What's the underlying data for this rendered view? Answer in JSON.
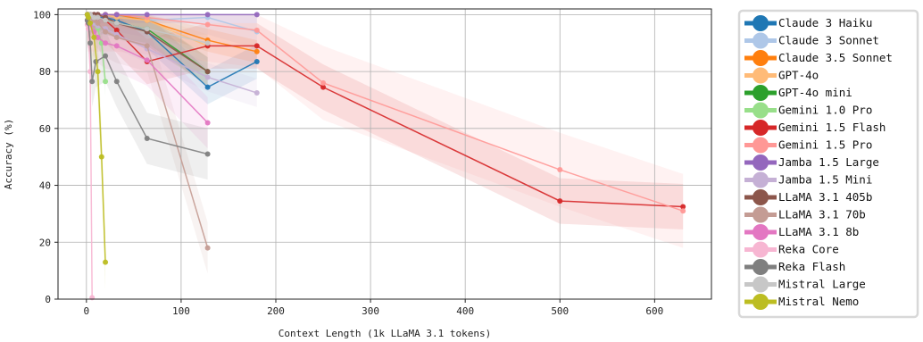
{
  "chart_data": {
    "type": "line",
    "title": "",
    "xlabel": "Context Length (1k LLaMA 3.1 tokens)",
    "ylabel": "Accuracy (%)",
    "xlim": [
      -30,
      660
    ],
    "ylim": [
      0,
      102
    ],
    "xticks": [
      0,
      100,
      200,
      300,
      400,
      500,
      600
    ],
    "yticks": [
      0,
      20,
      40,
      60,
      80,
      100
    ],
    "grid": true,
    "legend_position": "right",
    "series": [
      {
        "name": "Claude 3 Haiku",
        "color": "#1f77b4",
        "band": 6,
        "points": [
          [
            1,
            100
          ],
          [
            2,
            100
          ],
          [
            4,
            100
          ],
          [
            8,
            100
          ],
          [
            12,
            99
          ],
          [
            20,
            99
          ],
          [
            32,
            98
          ],
          [
            64,
            94
          ],
          [
            128,
            74.5
          ],
          [
            180,
            83.5
          ]
        ]
      },
      {
        "name": "Claude 3 Sonnet",
        "color": "#aec7e8",
        "band": 6,
        "points": [
          [
            1,
            100
          ],
          [
            2,
            100
          ],
          [
            4,
            100
          ],
          [
            8,
            100
          ],
          [
            12,
            100
          ],
          [
            20,
            100
          ],
          [
            32,
            100
          ],
          [
            64,
            98
          ],
          [
            128,
            99
          ],
          [
            180,
            94
          ]
        ]
      },
      {
        "name": "Claude 3.5 Sonnet",
        "color": "#ff7f0e",
        "band": 4,
        "points": [
          [
            1,
            100
          ],
          [
            2,
            100
          ],
          [
            4,
            100
          ],
          [
            8,
            100
          ],
          [
            12,
            100
          ],
          [
            20,
            100
          ],
          [
            32,
            100
          ],
          [
            64,
            98
          ],
          [
            128,
            91
          ],
          [
            180,
            87
          ]
        ]
      },
      {
        "name": "GPT-4o",
        "color": "#ffbb78",
        "band": 4,
        "points": [
          [
            1,
            100
          ],
          [
            2,
            100
          ],
          [
            4,
            100
          ],
          [
            8,
            100
          ],
          [
            12,
            100
          ],
          [
            20,
            100
          ],
          [
            32,
            99
          ],
          [
            64,
            98
          ],
          [
            128,
            89
          ]
        ]
      },
      {
        "name": "GPT-4o mini",
        "color": "#2ca02c",
        "band": 5,
        "points": [
          [
            1,
            100
          ],
          [
            2,
            100
          ],
          [
            4,
            100
          ],
          [
            8,
            100
          ],
          [
            12,
            99
          ],
          [
            20,
            98
          ],
          [
            32,
            97
          ],
          [
            64,
            95
          ],
          [
            128,
            80
          ]
        ]
      },
      {
        "name": "Gemini 1.0 Pro",
        "color": "#98df8a",
        "band": 5,
        "points": [
          [
            1,
            100
          ],
          [
            2,
            99
          ],
          [
            4,
            98
          ],
          [
            8,
            97
          ],
          [
            12,
            95
          ],
          [
            16,
            90
          ],
          [
            20,
            76.5
          ]
        ]
      },
      {
        "name": "Gemini 1.5 Flash",
        "color": "#d62728",
        "band": 8,
        "points": [
          [
            1,
            100
          ],
          [
            2,
            100
          ],
          [
            4,
            100
          ],
          [
            8,
            99
          ],
          [
            12,
            99
          ],
          [
            20,
            98
          ],
          [
            32,
            94.5
          ],
          [
            64,
            83.5
          ],
          [
            128,
            89
          ],
          [
            180,
            89
          ],
          [
            250,
            74.5
          ],
          [
            500,
            34.5
          ],
          [
            630,
            32.5
          ]
        ]
      },
      {
        "name": "Gemini 1.5 Pro",
        "color": "#ff9896",
        "band": 13,
        "points": [
          [
            1,
            100
          ],
          [
            2,
            100
          ],
          [
            4,
            100
          ],
          [
            8,
            100
          ],
          [
            12,
            100
          ],
          [
            20,
            100
          ],
          [
            32,
            100
          ],
          [
            64,
            99
          ],
          [
            128,
            96.5
          ],
          [
            180,
            94.5
          ],
          [
            250,
            76
          ],
          [
            500,
            45.5
          ],
          [
            630,
            31
          ]
        ]
      },
      {
        "name": "Jamba 1.5 Large",
        "color": "#9467bd",
        "band": 3,
        "points": [
          [
            1,
            100
          ],
          [
            2,
            100
          ],
          [
            4,
            100
          ],
          [
            8,
            100
          ],
          [
            12,
            100
          ],
          [
            20,
            100
          ],
          [
            32,
            100
          ],
          [
            64,
            100
          ],
          [
            128,
            100
          ],
          [
            180,
            100
          ]
        ]
      },
      {
        "name": "Jamba 1.5 Mini",
        "color": "#c5b0d5",
        "band": 5,
        "points": [
          [
            1,
            100
          ],
          [
            2,
            99
          ],
          [
            4,
            98
          ],
          [
            8,
            97
          ],
          [
            12,
            96
          ],
          [
            20,
            95
          ],
          [
            32,
            93
          ],
          [
            64,
            88
          ],
          [
            128,
            78
          ],
          [
            180,
            72.5
          ]
        ]
      },
      {
        "name": "LLaMA 3.1 405b",
        "color": "#8c564b",
        "band": 5,
        "points": [
          [
            1,
            100
          ],
          [
            2,
            100
          ],
          [
            4,
            100
          ],
          [
            8,
            100
          ],
          [
            12,
            100
          ],
          [
            20,
            99
          ],
          [
            32,
            97
          ],
          [
            64,
            94
          ],
          [
            128,
            80
          ]
        ]
      },
      {
        "name": "LLaMA 3.1 70b",
        "color": "#c49c94",
        "band": 9,
        "points": [
          [
            1,
            100
          ],
          [
            2,
            100
          ],
          [
            4,
            99
          ],
          [
            8,
            98
          ],
          [
            12,
            97
          ],
          [
            20,
            94
          ],
          [
            32,
            92
          ],
          [
            64,
            89
          ],
          [
            128,
            18
          ]
        ]
      },
      {
        "name": "LLaMA 3.1 8b",
        "color": "#e377c2",
        "band": 9,
        "points": [
          [
            1,
            98
          ],
          [
            2,
            97
          ],
          [
            4,
            96
          ],
          [
            8,
            94
          ],
          [
            12,
            92
          ],
          [
            20,
            90
          ],
          [
            32,
            89
          ],
          [
            64,
            84
          ],
          [
            128,
            62
          ]
        ]
      },
      {
        "name": "Reka Core",
        "color": "#f7b6d2",
        "band": 7,
        "points": [
          [
            1,
            96.5
          ],
          [
            2,
            95
          ],
          [
            4,
            80
          ],
          [
            6,
            0.5
          ]
        ]
      },
      {
        "name": "Reka Flash",
        "color": "#7f7f7f",
        "band": 9,
        "points": [
          [
            1,
            98
          ],
          [
            2,
            97
          ],
          [
            4,
            90
          ],
          [
            6,
            76.5
          ],
          [
            10,
            83.5
          ],
          [
            20,
            85.5
          ],
          [
            32,
            76.5
          ],
          [
            64,
            56.5
          ],
          [
            128,
            51
          ]
        ]
      },
      {
        "name": "Mistral Large",
        "color": "#c7c7c7",
        "band": 6,
        "points": [
          [
            1,
            100
          ],
          [
            2,
            100
          ],
          [
            4,
            100
          ],
          [
            8,
            99
          ],
          [
            12,
            99
          ],
          [
            20,
            98
          ],
          [
            32,
            97
          ],
          [
            64,
            95
          ],
          [
            128,
            90
          ]
        ]
      },
      {
        "name": "Mistral Nemo",
        "color": "#bcbd22",
        "band": 10,
        "points": [
          [
            1,
            100
          ],
          [
            2,
            99
          ],
          [
            4,
            97
          ],
          [
            8,
            92
          ],
          [
            12,
            80
          ],
          [
            16,
            50
          ],
          [
            20,
            13
          ]
        ]
      }
    ]
  }
}
